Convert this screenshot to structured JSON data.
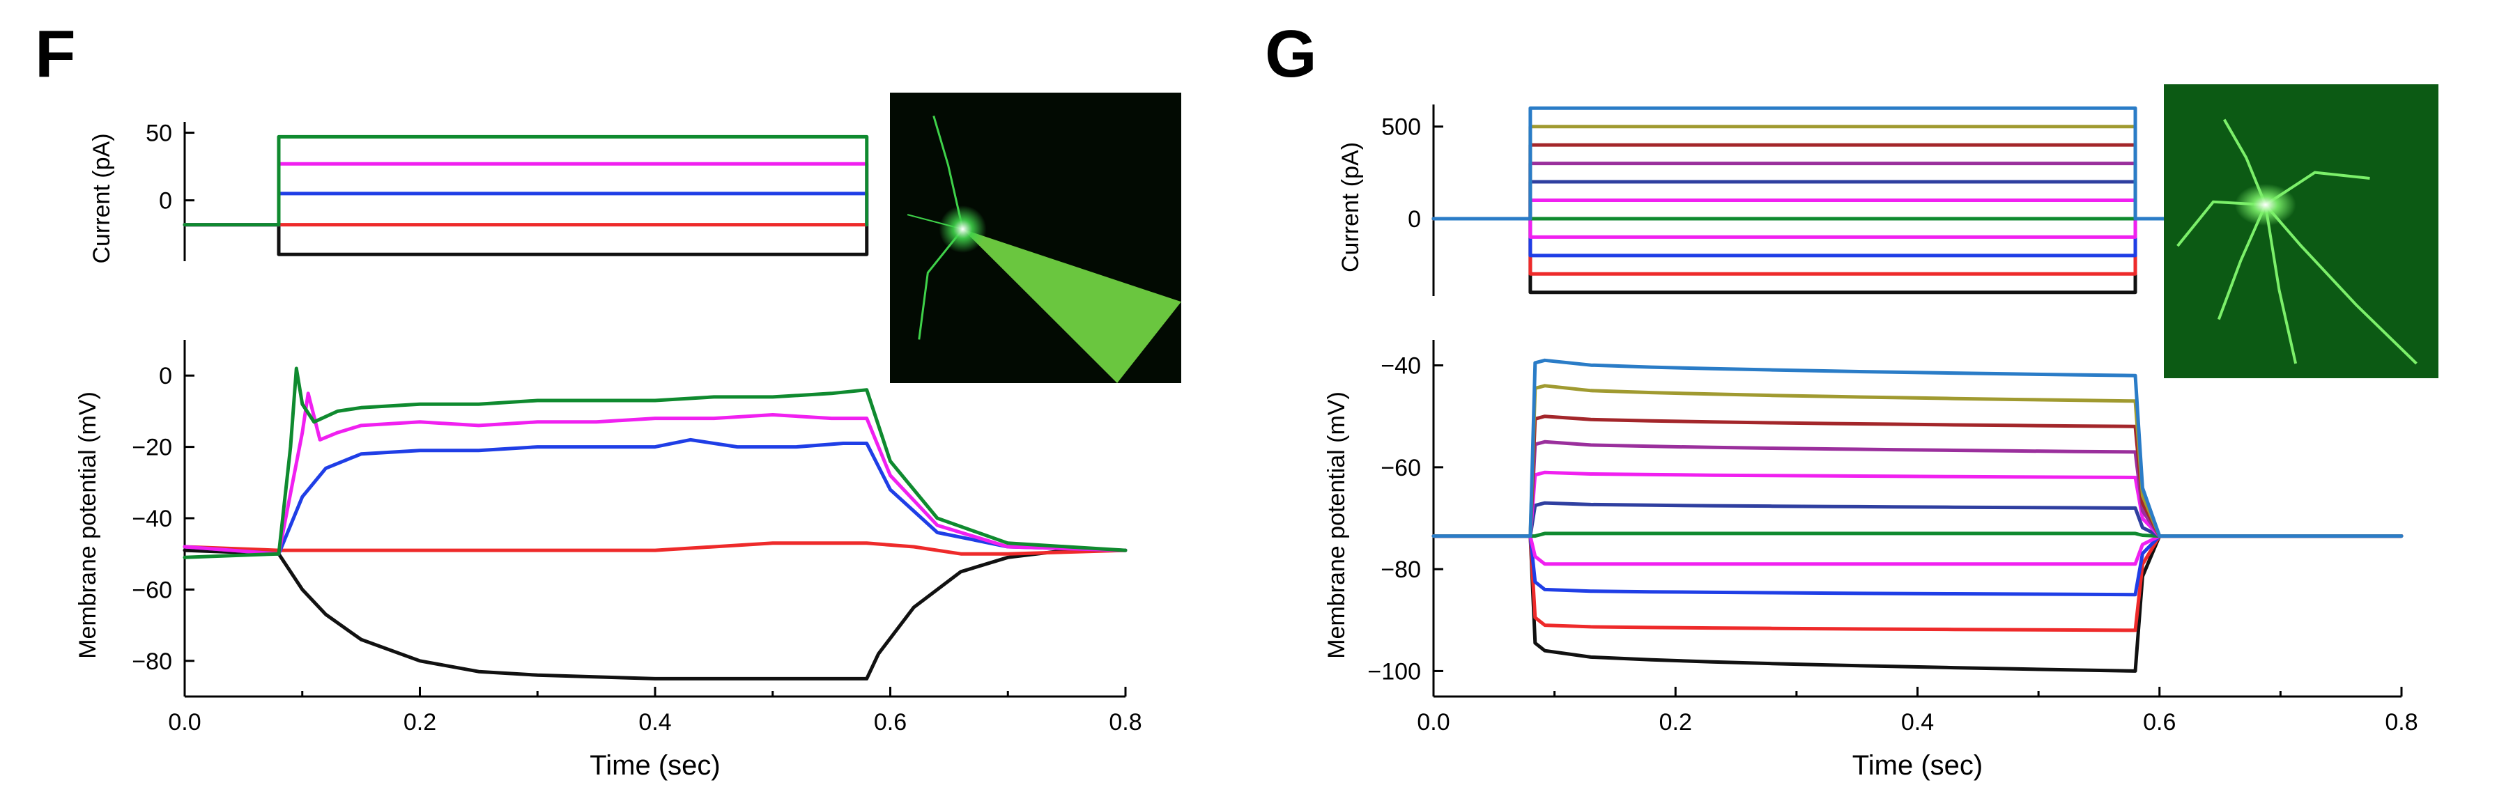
{
  "colors": {
    "black": "#111111",
    "red": "#ee2a2a",
    "blue": "#1f3ee6",
    "magenta": "#f020f0",
    "green": "#0f8a2f",
    "olive": "#a09a30",
    "darkred": "#a3262a",
    "purple": "#9a2f9c",
    "navy": "#2f3fa0",
    "steelblue": "#2a7cc7",
    "micro_bg_F": "#020a02",
    "micro_cell_F": "#3fd24a",
    "micro_bg_G": "#0c5a14",
    "micro_cell_G": "#7cf06a"
  },
  "chart_data": [
    {
      "panel": "F",
      "type": "line",
      "title": "",
      "inset": {
        "description_icon": "fluorescent-neuron-micrograph-icon"
      },
      "current": {
        "ylabel": "Current (pA)",
        "yticks": [
          0,
          50
        ],
        "ylim": [
          -45,
          58
        ],
        "xlim": [
          0.0,
          0.8
        ],
        "step": {
          "t_on": 0.08,
          "t_off": 0.58,
          "x_end": 0.58,
          "baseline": -18
        },
        "series": [
          {
            "color": "black",
            "value": -40
          },
          {
            "color": "red",
            "value": -18
          },
          {
            "color": "blue",
            "value": 5
          },
          {
            "color": "magenta",
            "value": 27
          },
          {
            "color": "green",
            "value": 47
          }
        ]
      },
      "voltage": {
        "ylabel": "Membrane potential (mV)",
        "yticks": [
          -80,
          -60,
          -40,
          -20,
          0
        ],
        "ylim": [
          -90,
          10
        ],
        "xlim": [
          0.0,
          0.8
        ],
        "xticks": [
          0.0,
          0.2,
          0.4,
          0.6,
          0.8
        ],
        "xtick_labels": [
          "0.0",
          "0.2",
          "0.4",
          "0.6",
          "0.8"
        ],
        "xlabel": "Time (sec)",
        "series": [
          {
            "color": "black",
            "points": [
              [
                0.0,
                -49
              ],
              [
                0.08,
                -50
              ],
              [
                0.1,
                -60
              ],
              [
                0.12,
                -67
              ],
              [
                0.15,
                -74
              ],
              [
                0.2,
                -80
              ],
              [
                0.25,
                -83
              ],
              [
                0.3,
                -84
              ],
              [
                0.4,
                -85
              ],
              [
                0.5,
                -85
              ],
              [
                0.58,
                -85
              ],
              [
                0.59,
                -78
              ],
              [
                0.62,
                -65
              ],
              [
                0.66,
                -55
              ],
              [
                0.7,
                -51
              ],
              [
                0.75,
                -49
              ],
              [
                0.8,
                -49
              ]
            ]
          },
          {
            "color": "red",
            "points": [
              [
                0.0,
                -48
              ],
              [
                0.08,
                -49
              ],
              [
                0.2,
                -49
              ],
              [
                0.3,
                -49
              ],
              [
                0.4,
                -49
              ],
              [
                0.5,
                -47
              ],
              [
                0.58,
                -47
              ],
              [
                0.62,
                -48
              ],
              [
                0.66,
                -50
              ],
              [
                0.7,
                -50
              ],
              [
                0.8,
                -49
              ]
            ]
          },
          {
            "color": "blue",
            "points": [
              [
                0.0,
                -48
              ],
              [
                0.08,
                -50
              ],
              [
                0.1,
                -34
              ],
              [
                0.12,
                -26
              ],
              [
                0.15,
                -22
              ],
              [
                0.2,
                -21
              ],
              [
                0.25,
                -21
              ],
              [
                0.3,
                -20
              ],
              [
                0.35,
                -20
              ],
              [
                0.4,
                -20
              ],
              [
                0.43,
                -18
              ],
              [
                0.47,
                -20
              ],
              [
                0.52,
                -20
              ],
              [
                0.56,
                -19
              ],
              [
                0.58,
                -19
              ],
              [
                0.6,
                -32
              ],
              [
                0.64,
                -44
              ],
              [
                0.7,
                -48
              ],
              [
                0.8,
                -49
              ]
            ]
          },
          {
            "color": "magenta",
            "points": [
              [
                0.0,
                -48
              ],
              [
                0.08,
                -50
              ],
              [
                0.1,
                -16
              ],
              [
                0.105,
                -5
              ],
              [
                0.115,
                -18
              ],
              [
                0.13,
                -16
              ],
              [
                0.15,
                -14
              ],
              [
                0.2,
                -13
              ],
              [
                0.25,
                -14
              ],
              [
                0.3,
                -13
              ],
              [
                0.35,
                -13
              ],
              [
                0.4,
                -12
              ],
              [
                0.45,
                -12
              ],
              [
                0.5,
                -11
              ],
              [
                0.55,
                -12
              ],
              [
                0.58,
                -12
              ],
              [
                0.6,
                -28
              ],
              [
                0.64,
                -42
              ],
              [
                0.7,
                -48
              ],
              [
                0.8,
                -49
              ]
            ]
          },
          {
            "color": "green",
            "points": [
              [
                0.0,
                -51
              ],
              [
                0.08,
                -50
              ],
              [
                0.09,
                -20
              ],
              [
                0.095,
                2
              ],
              [
                0.1,
                -8
              ],
              [
                0.11,
                -13
              ],
              [
                0.13,
                -10
              ],
              [
                0.15,
                -9
              ],
              [
                0.2,
                -8
              ],
              [
                0.25,
                -8
              ],
              [
                0.3,
                -7
              ],
              [
                0.35,
                -7
              ],
              [
                0.4,
                -7
              ],
              [
                0.45,
                -6
              ],
              [
                0.5,
                -6
              ],
              [
                0.55,
                -5
              ],
              [
                0.58,
                -4
              ],
              [
                0.6,
                -24
              ],
              [
                0.64,
                -40
              ],
              [
                0.7,
                -47
              ],
              [
                0.8,
                -49
              ]
            ]
          }
        ]
      }
    },
    {
      "panel": "G",
      "type": "line",
      "title": "",
      "inset": {
        "description_icon": "fluorescent-neuron-micrograph-icon"
      },
      "current": {
        "ylabel": "Current (pA)",
        "yticks": [
          0,
          500
        ],
        "ylim": [
          -420,
          620
        ],
        "xlim": [
          0.0,
          0.8
        ],
        "step": {
          "t_on": 0.08,
          "t_off": 0.58,
          "x_end": 0.61,
          "baseline": 0
        },
        "series": [
          {
            "color": "black",
            "value": -400
          },
          {
            "color": "red",
            "value": -300
          },
          {
            "color": "blue",
            "value": -200
          },
          {
            "color": "magenta",
            "value": -100
          },
          {
            "color": "green",
            "value": 0
          },
          {
            "color": "magenta",
            "value": 100
          },
          {
            "color": "navy",
            "value": 200
          },
          {
            "color": "purple",
            "value": 300
          },
          {
            "color": "darkred",
            "value": 400
          },
          {
            "color": "olive",
            "value": 500
          },
          {
            "color": "steelblue",
            "value": 600
          }
        ]
      },
      "voltage": {
        "ylabel": "Membrane potential (mV)",
        "yticks": [
          -100,
          -80,
          -60,
          -40
        ],
        "ylim": [
          -105,
          -35
        ],
        "xlim": [
          0.0,
          0.8
        ],
        "xticks": [
          0.0,
          0.2,
          0.4,
          0.6,
          0.8
        ],
        "xtick_labels": [
          "0.0",
          "0.2",
          "0.4",
          "0.6",
          "0.8"
        ],
        "xlabel": "Time (sec)",
        "series": [
          {
            "color": "black",
            "start": -96,
            "end": -100
          },
          {
            "color": "red",
            "start": -91,
            "end": -92
          },
          {
            "color": "blue",
            "start": -84,
            "end": -85
          },
          {
            "color": "magenta",
            "start": -79,
            "end": -79
          },
          {
            "color": "green",
            "start": -73,
            "end": -73
          },
          {
            "color": "navy",
            "start": -67,
            "end": -68
          },
          {
            "color": "magenta",
            "start": -61,
            "end": -62
          },
          {
            "color": "purple",
            "start": -55,
            "end": -57
          },
          {
            "color": "darkred",
            "start": -50,
            "end": -52
          },
          {
            "color": "olive",
            "start": -44,
            "end": -47
          },
          {
            "color": "steelblue",
            "start": -39,
            "end": -42
          }
        ],
        "baseline": -73.5
      }
    }
  ]
}
